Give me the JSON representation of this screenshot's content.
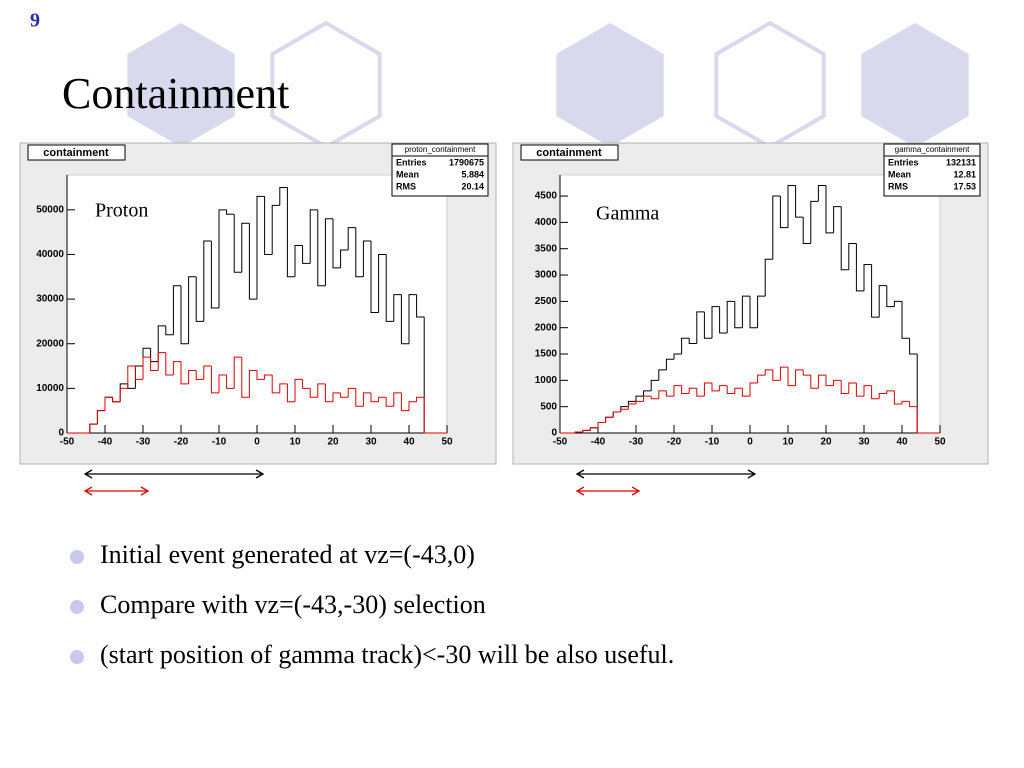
{
  "slide_number": "9",
  "title": "Containment",
  "bullets": [
    "Initial event generated at vz=(-43,0)",
    "Compare with vz=(-43,-30) selection",
    "(start position of gamma track)<-30 will be also useful."
  ],
  "chart_data": [
    {
      "type": "histogram",
      "title": "containment",
      "annotation": "Proton",
      "stats": {
        "name": "proton_containment",
        "rows": [
          {
            "label": "Entries",
            "value": 1790675
          },
          {
            "label": "Mean",
            "value": 5.884
          },
          {
            "label": "RMS",
            "value": 20.14
          }
        ]
      },
      "bins": [
        -50,
        -48,
        -46,
        -44,
        -42,
        -40,
        -38,
        -36,
        -34,
        -32,
        -30,
        -28,
        -26,
        -24,
        -22,
        -20,
        -18,
        -16,
        -14,
        -12,
        -10,
        -8,
        -6,
        -4,
        -2,
        0,
        2,
        4,
        6,
        8,
        10,
        12,
        14,
        16,
        18,
        20,
        22,
        24,
        26,
        28,
        30,
        32,
        34,
        36,
        38,
        40,
        42,
        44,
        46,
        48,
        50
      ],
      "series": [
        {
          "color": "#000000",
          "values": [
            0,
            0,
            0,
            2000,
            5000,
            8000,
            7000,
            11000,
            10000,
            15000,
            19000,
            16000,
            24000,
            22000,
            33000,
            20000,
            35000,
            25000,
            43000,
            28000,
            50000,
            49000,
            36000,
            47000,
            30000,
            53000,
            40000,
            51000,
            55000,
            35000,
            42000,
            38000,
            50000,
            33000,
            48000,
            37000,
            41000,
            46000,
            35000,
            43000,
            27000,
            40000,
            25000,
            31000,
            20000,
            31000,
            26000,
            0,
            0,
            0
          ]
        },
        {
          "color": "#e00000",
          "values": [
            0,
            0,
            0,
            2000,
            5000,
            8000,
            7000,
            10000,
            15000,
            12000,
            17000,
            14000,
            18000,
            13000,
            16000,
            11000,
            14000,
            12000,
            15000,
            9000,
            13000,
            10000,
            17000,
            8000,
            14000,
            12000,
            13000,
            9000,
            11000,
            7000,
            12000,
            10000,
            8000,
            11000,
            7000,
            9000,
            8000,
            10000,
            6000,
            9000,
            7000,
            8000,
            6000,
            9000,
            5000,
            7000,
            8000,
            0,
            0,
            0
          ]
        }
      ],
      "xlim": [
        -50,
        50
      ],
      "xticks": [
        -50,
        -40,
        -30,
        -20,
        -10,
        0,
        10,
        20,
        30,
        40,
        50
      ],
      "ylim": [
        0,
        57800
      ],
      "yticks": [
        0,
        10000,
        20000,
        30000,
        40000,
        50000
      ]
    },
    {
      "type": "histogram",
      "title": "containment",
      "annotation": "Gamma",
      "stats": {
        "name": "gamma_containment",
        "rows": [
          {
            "label": "Entries",
            "value": 132131
          },
          {
            "label": "Mean",
            "value": 12.81
          },
          {
            "label": "RMS",
            "value": 17.53
          }
        ]
      },
      "bins": [
        -50,
        -48,
        -46,
        -44,
        -42,
        -40,
        -38,
        -36,
        -34,
        -32,
        -30,
        -28,
        -26,
        -24,
        -22,
        -20,
        -18,
        -16,
        -14,
        -12,
        -10,
        -8,
        -6,
        -4,
        -2,
        0,
        2,
        4,
        6,
        8,
        10,
        12,
        14,
        16,
        18,
        20,
        22,
        24,
        26,
        28,
        30,
        32,
        34,
        36,
        38,
        40,
        42,
        44,
        46,
        48,
        50
      ],
      "series": [
        {
          "color": "#000000",
          "values": [
            0,
            0,
            20,
            50,
            100,
            200,
            300,
            400,
            500,
            600,
            700,
            800,
            1000,
            1200,
            1400,
            1500,
            1800,
            1700,
            2300,
            1800,
            2400,
            1900,
            2500,
            2000,
            2600,
            2000,
            2600,
            3300,
            4500,
            3900,
            4700,
            4100,
            3600,
            4400,
            4700,
            3800,
            4300,
            3100,
            3600,
            2700,
            3200,
            2200,
            2800,
            2400,
            2500,
            1800,
            1500,
            0,
            0,
            0
          ]
        },
        {
          "color": "#e00000",
          "values": [
            0,
            0,
            20,
            50,
            100,
            200,
            300,
            400,
            450,
            550,
            600,
            700,
            650,
            800,
            700,
            900,
            750,
            850,
            700,
            950,
            800,
            900,
            750,
            850,
            700,
            950,
            1100,
            1200,
            1000,
            1250,
            900,
            1200,
            1100,
            850,
            1100,
            900,
            1000,
            750,
            950,
            700,
            900,
            650,
            750,
            800,
            550,
            600,
            500,
            0,
            0,
            0
          ]
        }
      ],
      "xlim": [
        -50,
        50
      ],
      "xticks": [
        -50,
        -40,
        -30,
        -20,
        -10,
        0,
        10,
        20,
        30,
        40,
        50
      ],
      "ylim": [
        0,
        4900
      ],
      "yticks": [
        0,
        500,
        1000,
        1500,
        2000,
        2500,
        3000,
        3500,
        4000,
        4500
      ]
    }
  ]
}
